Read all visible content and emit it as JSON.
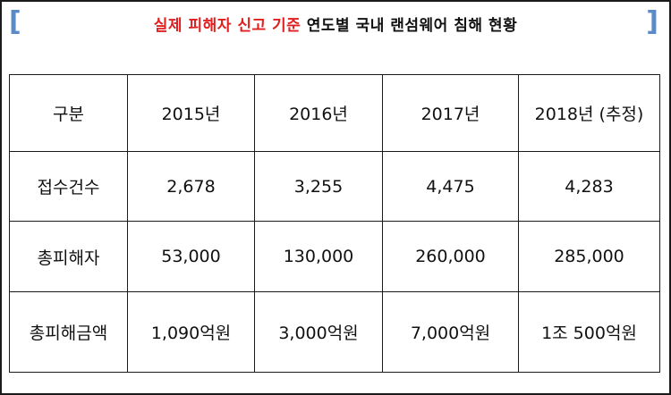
{
  "title": {
    "highlight": "실제 피해자 신고 기준",
    "rest": "연도별 국내 랜섬웨어 침해 현황"
  },
  "decor": {
    "left_bracket": "[",
    "right_bracket": "]",
    "bracket_color": "#5b8bc6",
    "highlight_color": "#e02020"
  },
  "table": {
    "header": [
      "구분",
      "2015년",
      "2016년",
      "2017년",
      "2018년 (추정)"
    ],
    "rows": [
      [
        "접수건수",
        "2,678",
        "3,255",
        "4,475",
        "4,283"
      ],
      [
        "총피해자",
        "53,000",
        "130,000",
        "260,000",
        "285,000"
      ],
      [
        "총피해금액",
        "1,090억원",
        "3,000억원",
        "7,000억원",
        "1조 500억원"
      ]
    ]
  }
}
